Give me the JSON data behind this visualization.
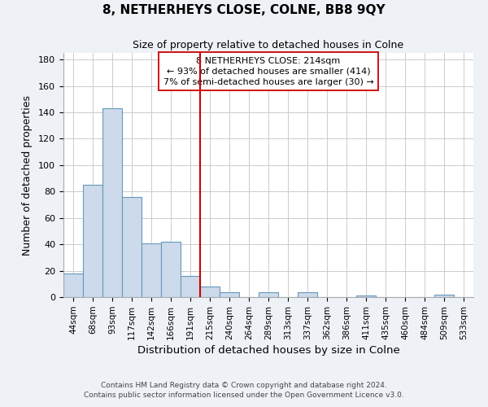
{
  "title": "8, NETHERHEYS CLOSE, COLNE, BB8 9QY",
  "subtitle": "Size of property relative to detached houses in Colne",
  "xlabel": "Distribution of detached houses by size in Colne",
  "ylabel": "Number of detached properties",
  "bin_labels": [
    "44sqm",
    "68sqm",
    "93sqm",
    "117sqm",
    "142sqm",
    "166sqm",
    "191sqm",
    "215sqm",
    "240sqm",
    "264sqm",
    "289sqm",
    "313sqm",
    "337sqm",
    "362sqm",
    "386sqm",
    "411sqm",
    "435sqm",
    "460sqm",
    "484sqm",
    "509sqm",
    "533sqm"
  ],
  "bar_values": [
    18,
    85,
    143,
    76,
    41,
    42,
    16,
    8,
    4,
    0,
    4,
    0,
    4,
    0,
    0,
    1,
    0,
    0,
    0,
    2,
    0
  ],
  "bar_color": "#ccdaeb",
  "bar_edgecolor": "#6699bb",
  "vline_x_index": 7,
  "vline_color": "#cc0000",
  "annotation_title": "8 NETHERHEYS CLOSE: 214sqm",
  "annotation_line1": "← 93% of detached houses are smaller (414)",
  "annotation_line2": "7% of semi-detached houses are larger (30) →",
  "annotation_box_edgecolor": "#cc0000",
  "ylim": [
    0,
    185
  ],
  "yticks": [
    0,
    20,
    40,
    60,
    80,
    100,
    120,
    140,
    160,
    180
  ],
  "footer1": "Contains HM Land Registry data © Crown copyright and database right 2024.",
  "footer2": "Contains public sector information licensed under the Open Government Licence v3.0.",
  "background_color": "#eef2f7",
  "plot_background": "#ffffff"
}
